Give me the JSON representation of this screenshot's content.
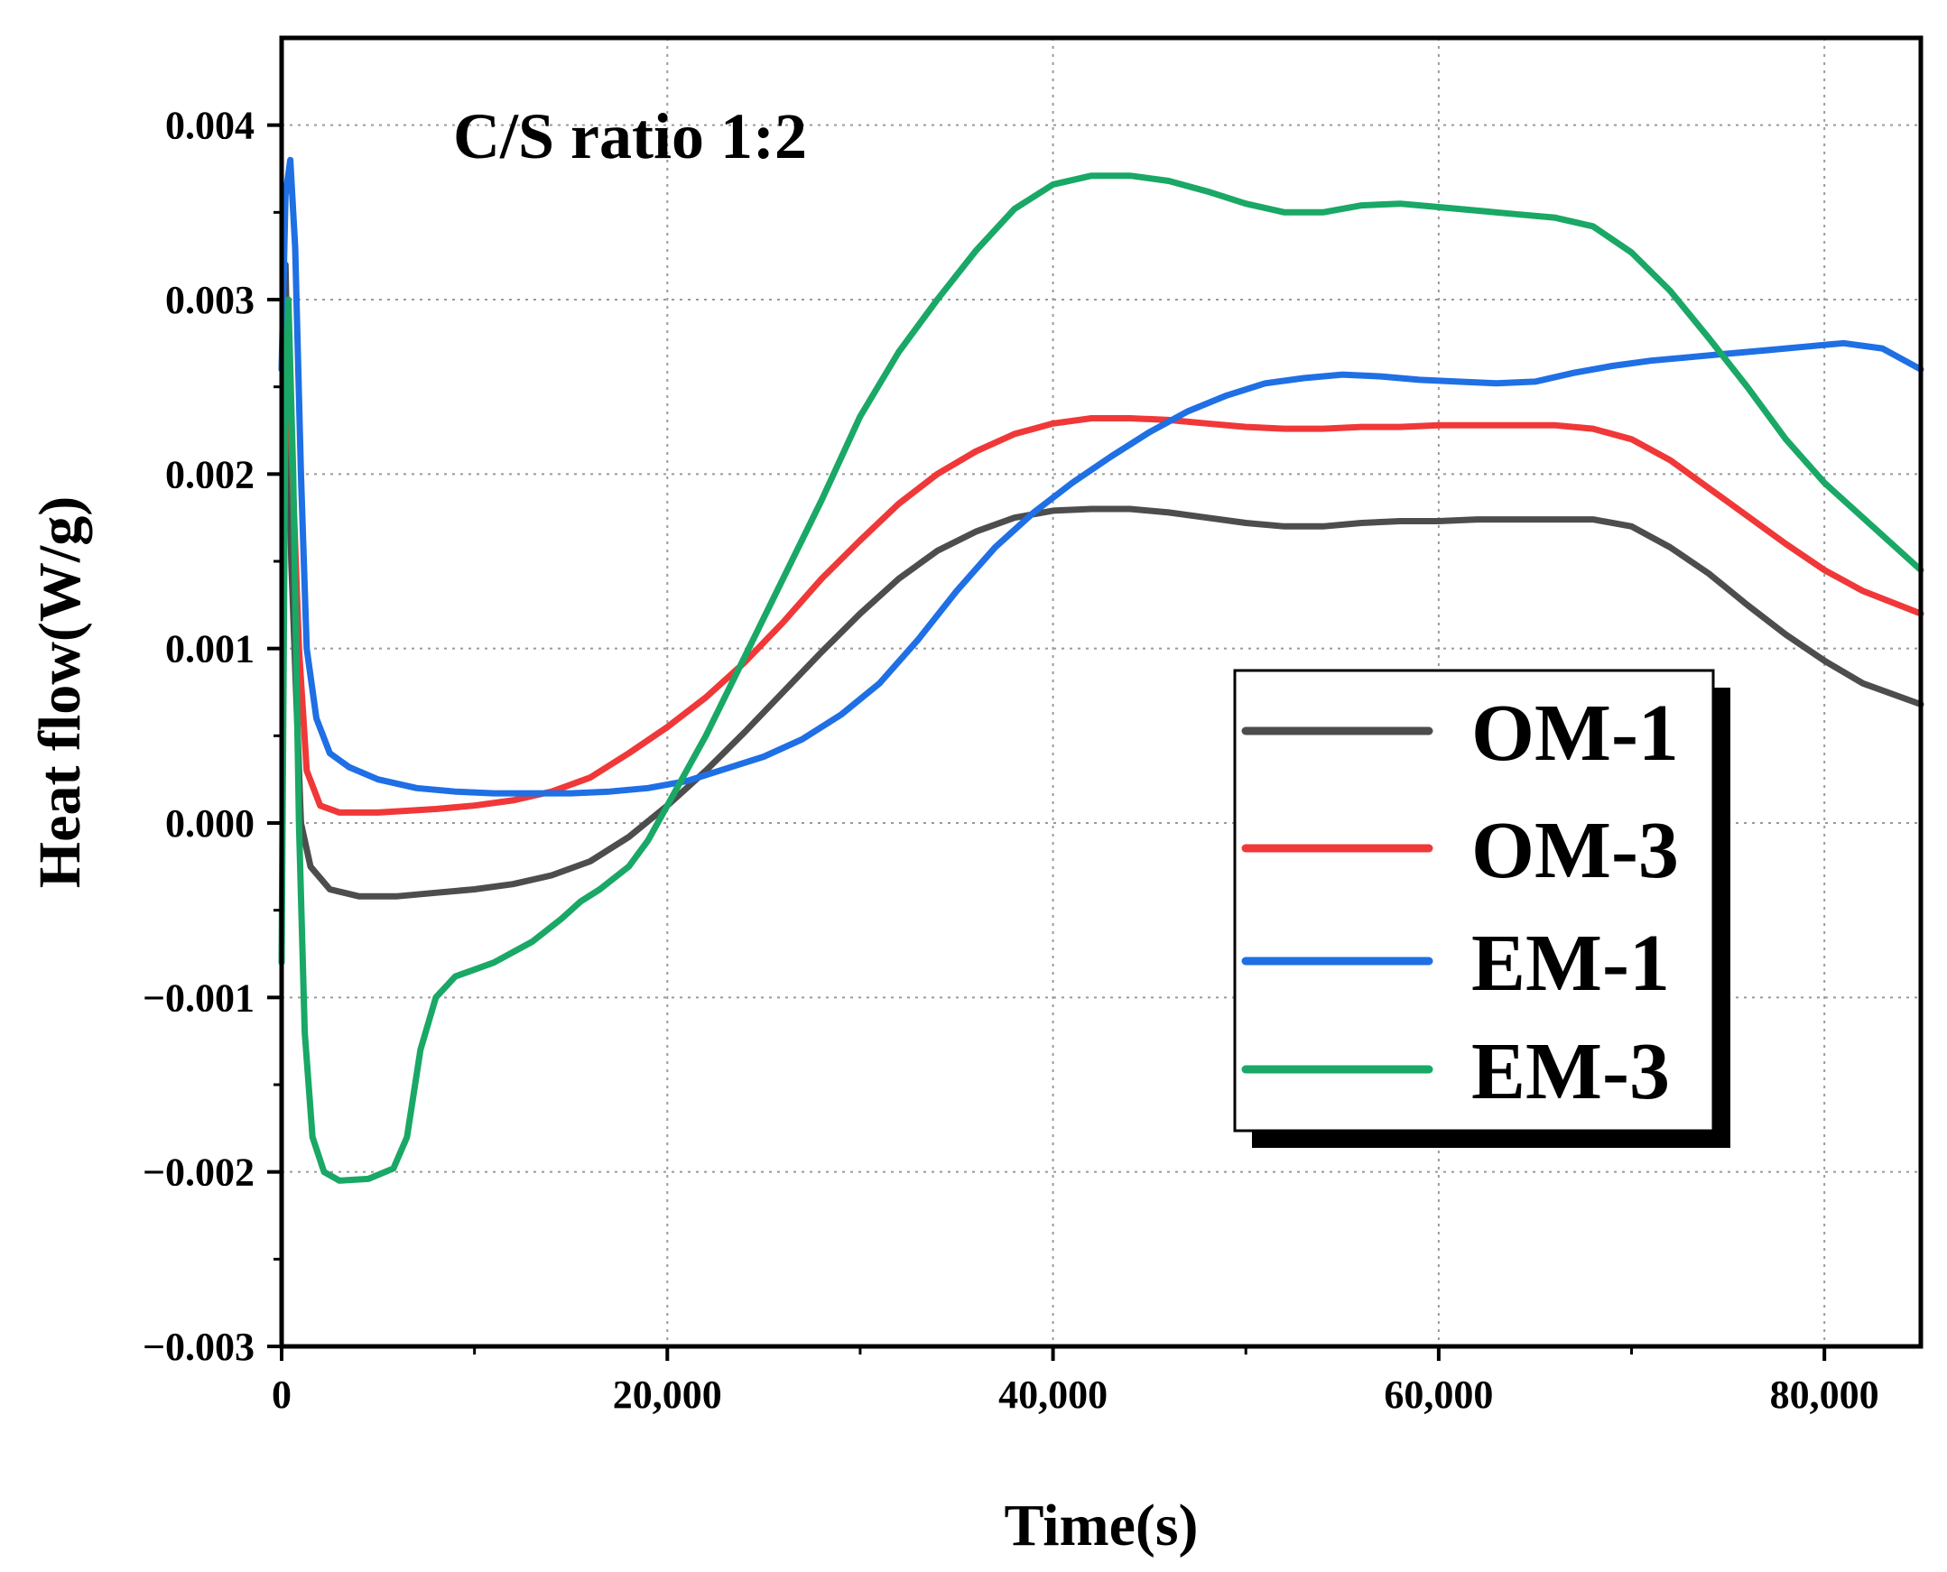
{
  "chart_data": {
    "type": "line",
    "title": "",
    "annotation": "C/S ratio 1:2",
    "xlabel": "Time(s)",
    "ylabel": "Heat flow(W/g)",
    "xlim": [
      0,
      85000
    ],
    "ylim": [
      -0.003,
      0.0045
    ],
    "x_ticks": [
      0,
      20000,
      40000,
      60000,
      80000
    ],
    "x_tick_labels": [
      "0",
      "20,000",
      "40,000",
      "60,000",
      "80,000"
    ],
    "y_ticks": [
      -0.003,
      -0.002,
      -0.001,
      0.0,
      0.001,
      0.002,
      0.003,
      0.004
    ],
    "y_tick_labels": [
      "−0.003",
      "−0.002",
      "−0.001",
      "0.000",
      "0.001",
      "0.002",
      "0.003",
      "0.004"
    ],
    "grid": true,
    "legend_position": "center-right",
    "series": [
      {
        "name": "OM-1",
        "color": "#4d4d4d",
        "points": [
          [
            200,
            0.0032
          ],
          [
            500,
            0.0015
          ],
          [
            1000,
            0.0
          ],
          [
            1500,
            -0.00025
          ],
          [
            2500,
            -0.00038
          ],
          [
            4000,
            -0.00042
          ],
          [
            6000,
            -0.00042
          ],
          [
            8000,
            -0.0004
          ],
          [
            10000,
            -0.00038
          ],
          [
            12000,
            -0.00035
          ],
          [
            14000,
            -0.0003
          ],
          [
            16000,
            -0.00022
          ],
          [
            18000,
            -8e-05
          ],
          [
            20000,
            0.0001
          ],
          [
            22000,
            0.0003
          ],
          [
            24000,
            0.00052
          ],
          [
            26000,
            0.00075
          ],
          [
            28000,
            0.00098
          ],
          [
            30000,
            0.0012
          ],
          [
            32000,
            0.0014
          ],
          [
            34000,
            0.00156
          ],
          [
            36000,
            0.00167
          ],
          [
            38000,
            0.00175
          ],
          [
            40000,
            0.00179
          ],
          [
            42000,
            0.0018
          ],
          [
            44000,
            0.0018
          ],
          [
            46000,
            0.00178
          ],
          [
            48000,
            0.00175
          ],
          [
            50000,
            0.00172
          ],
          [
            52000,
            0.0017
          ],
          [
            54000,
            0.0017
          ],
          [
            56000,
            0.00172
          ],
          [
            58000,
            0.00173
          ],
          [
            60000,
            0.00173
          ],
          [
            62000,
            0.00174
          ],
          [
            64000,
            0.00174
          ],
          [
            66000,
            0.00174
          ],
          [
            68000,
            0.00174
          ],
          [
            70000,
            0.0017
          ],
          [
            72000,
            0.00158
          ],
          [
            74000,
            0.00143
          ],
          [
            76000,
            0.00125
          ],
          [
            78000,
            0.00108
          ],
          [
            80000,
            0.00093
          ],
          [
            82000,
            0.0008
          ],
          [
            85000,
            0.00068
          ]
        ]
      },
      {
        "name": "OM-3",
        "color": "#f03838",
        "points": [
          [
            200,
            0.003
          ],
          [
            500,
            0.0022
          ],
          [
            900,
            0.001
          ],
          [
            1300,
            0.0003
          ],
          [
            2000,
            0.0001
          ],
          [
            3000,
            6e-05
          ],
          [
            5000,
            6e-05
          ],
          [
            8000,
            8e-05
          ],
          [
            10000,
            0.0001
          ],
          [
            12000,
            0.00013
          ],
          [
            14000,
            0.00018
          ],
          [
            16000,
            0.00026
          ],
          [
            18000,
            0.0004
          ],
          [
            20000,
            0.00055
          ],
          [
            22000,
            0.00072
          ],
          [
            24000,
            0.00092
          ],
          [
            26000,
            0.00115
          ],
          [
            28000,
            0.0014
          ],
          [
            30000,
            0.00162
          ],
          [
            32000,
            0.00183
          ],
          [
            34000,
            0.002
          ],
          [
            36000,
            0.00213
          ],
          [
            38000,
            0.00223
          ],
          [
            40000,
            0.00229
          ],
          [
            42000,
            0.00232
          ],
          [
            44000,
            0.00232
          ],
          [
            46000,
            0.00231
          ],
          [
            48000,
            0.00229
          ],
          [
            50000,
            0.00227
          ],
          [
            52000,
            0.00226
          ],
          [
            54000,
            0.00226
          ],
          [
            56000,
            0.00227
          ],
          [
            58000,
            0.00227
          ],
          [
            60000,
            0.00228
          ],
          [
            62000,
            0.00228
          ],
          [
            64000,
            0.00228
          ],
          [
            66000,
            0.00228
          ],
          [
            68000,
            0.00226
          ],
          [
            70000,
            0.0022
          ],
          [
            72000,
            0.00208
          ],
          [
            74000,
            0.00192
          ],
          [
            76000,
            0.00176
          ],
          [
            78000,
            0.0016
          ],
          [
            80000,
            0.00145
          ],
          [
            82000,
            0.00133
          ],
          [
            85000,
            0.0012
          ]
        ]
      },
      {
        "name": "EM-1",
        "color": "#1f6fe5",
        "points": [
          [
            0,
            0.0026
          ],
          [
            200,
            0.0036
          ],
          [
            450,
            0.0038
          ],
          [
            700,
            0.0033
          ],
          [
            1000,
            0.002
          ],
          [
            1300,
            0.001
          ],
          [
            1800,
            0.0006
          ],
          [
            2500,
            0.0004
          ],
          [
            3500,
            0.00032
          ],
          [
            5000,
            0.00025
          ],
          [
            7000,
            0.0002
          ],
          [
            9000,
            0.00018
          ],
          [
            11000,
            0.00017
          ],
          [
            13000,
            0.00017
          ],
          [
            15000,
            0.00017
          ],
          [
            17000,
            0.00018
          ],
          [
            19000,
            0.0002
          ],
          [
            21000,
            0.00024
          ],
          [
            23000,
            0.00031
          ],
          [
            25000,
            0.00038
          ],
          [
            27000,
            0.00048
          ],
          [
            29000,
            0.00062
          ],
          [
            31000,
            0.0008
          ],
          [
            33000,
            0.00105
          ],
          [
            35000,
            0.00133
          ],
          [
            37000,
            0.00158
          ],
          [
            39000,
            0.00178
          ],
          [
            41000,
            0.00195
          ],
          [
            43000,
            0.0021
          ],
          [
            45000,
            0.00224
          ],
          [
            47000,
            0.00236
          ],
          [
            49000,
            0.00245
          ],
          [
            51000,
            0.00252
          ],
          [
            53000,
            0.00255
          ],
          [
            55000,
            0.00257
          ],
          [
            57000,
            0.00256
          ],
          [
            59000,
            0.00254
          ],
          [
            61000,
            0.00253
          ],
          [
            63000,
            0.00252
          ],
          [
            65000,
            0.00253
          ],
          [
            67000,
            0.00258
          ],
          [
            69000,
            0.00262
          ],
          [
            71000,
            0.00265
          ],
          [
            73000,
            0.00267
          ],
          [
            75000,
            0.00269
          ],
          [
            77000,
            0.00271
          ],
          [
            79000,
            0.00273
          ],
          [
            81000,
            0.00275
          ],
          [
            83000,
            0.00272
          ],
          [
            85000,
            0.0026
          ]
        ]
      },
      {
        "name": "EM-3",
        "color": "#19a865",
        "points": [
          [
            0,
            -0.0008
          ],
          [
            200,
            0.0025
          ],
          [
            350,
            0.003
          ],
          [
            600,
            0.002
          ],
          [
            900,
            0.0
          ],
          [
            1200,
            -0.0012
          ],
          [
            1600,
            -0.0018
          ],
          [
            2200,
            -0.002
          ],
          [
            3000,
            -0.00205
          ],
          [
            4500,
            -0.00204
          ],
          [
            5800,
            -0.00198
          ],
          [
            6500,
            -0.0018
          ],
          [
            7200,
            -0.0013
          ],
          [
            8000,
            -0.001
          ],
          [
            9000,
            -0.00088
          ],
          [
            10000,
            -0.00084
          ],
          [
            11000,
            -0.0008
          ],
          [
            13000,
            -0.00068
          ],
          [
            14500,
            -0.00055
          ],
          [
            15500,
            -0.00045
          ],
          [
            16500,
            -0.00038
          ],
          [
            18000,
            -0.00025
          ],
          [
            19000,
            -0.0001
          ],
          [
            20000,
            0.0001
          ],
          [
            22000,
            0.0005
          ],
          [
            24000,
            0.00095
          ],
          [
            26000,
            0.0014
          ],
          [
            28000,
            0.00185
          ],
          [
            30000,
            0.00233
          ],
          [
            32000,
            0.0027
          ],
          [
            34000,
            0.003
          ],
          [
            36000,
            0.00328
          ],
          [
            38000,
            0.00352
          ],
          [
            40000,
            0.00366
          ],
          [
            42000,
            0.00371
          ],
          [
            44000,
            0.00371
          ],
          [
            46000,
            0.00368
          ],
          [
            48000,
            0.00362
          ],
          [
            50000,
            0.00355
          ],
          [
            52000,
            0.0035
          ],
          [
            54000,
            0.0035
          ],
          [
            56000,
            0.00354
          ],
          [
            58000,
            0.00355
          ],
          [
            60000,
            0.00353
          ],
          [
            62000,
            0.00351
          ],
          [
            64000,
            0.00349
          ],
          [
            66000,
            0.00347
          ],
          [
            68000,
            0.00342
          ],
          [
            70000,
            0.00327
          ],
          [
            72000,
            0.00305
          ],
          [
            74000,
            0.00278
          ],
          [
            76000,
            0.0025
          ],
          [
            78000,
            0.0022
          ],
          [
            80000,
            0.00195
          ],
          [
            82000,
            0.00175
          ],
          [
            84000,
            0.00155
          ],
          [
            85000,
            0.00145
          ]
        ]
      }
    ]
  }
}
